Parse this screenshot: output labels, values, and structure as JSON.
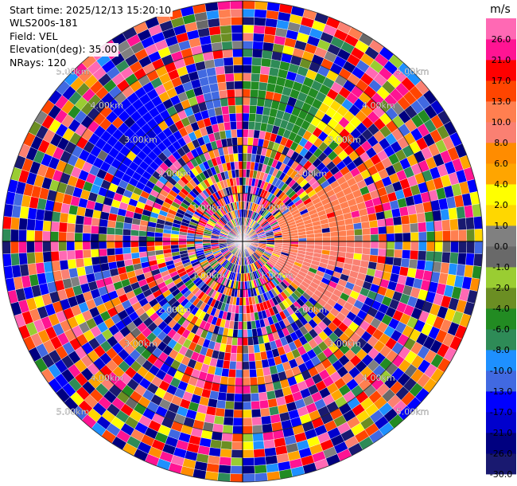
{
  "header": {
    "start_time": "Start time: 2025/12/13 15:20:10",
    "instrument": "WLS200s-181",
    "field": "Field: VEL",
    "elevation": "Elevation(deg): 35.00",
    "nrays": "NRays: 120"
  },
  "chart_data": {
    "type": "heatmap",
    "projection": "polar",
    "n_rays": 120,
    "n_gates": 30,
    "range_unit": "km",
    "range_max_km": 5.0,
    "range_rings_km": [
      1.0,
      2.0,
      3.0,
      4.0,
      5.0
    ],
    "range_ring_labels": [
      "1.00km",
      "2.00km",
      "3.00km",
      "4.00km",
      "5.00km"
    ],
    "colorbar": {
      "unit": "m/s",
      "levels": [
        -30.0,
        -26.0,
        -21.0,
        -17.0,
        -13.0,
        -10.0,
        -8.0,
        -6.0,
        -4.0,
        -2.0,
        -1.0,
        0.0,
        1.0,
        2.0,
        4.0,
        6.0,
        8.0,
        10.0,
        13.0,
        17.0,
        21.0,
        26.0,
        30.0
      ],
      "tick_labels": [
        "-30.0",
        "-26.0",
        "-21.0",
        "-17.0",
        "-13.0",
        "-10.0",
        "-8.0",
        "-6.0",
        "-4.0",
        "-2.0",
        "-1.0",
        "0.0",
        "1.0",
        "2.0",
        "4.0",
        "6.0",
        "8.0",
        "10.0",
        "13.0",
        "17.0",
        "21.0",
        "26.0"
      ],
      "colors": [
        "#191970",
        "#000080",
        "#0000cd",
        "#0000ff",
        "#4169e1",
        "#1e90ff",
        "#2e8b57",
        "#228b22",
        "#6b8e23",
        "#9acd32",
        "#696969",
        "#808080",
        "#ffd700",
        "#ffff00",
        "#ffa500",
        "#ff8c00",
        "#fa8072",
        "#ff7f50",
        "#ff4500",
        "#ff0000",
        "#ff1493",
        "#ff69b4"
      ]
    },
    "coherent_sectors": [
      {
        "az_from_deg": 298,
        "az_to_deg": 330,
        "r_from_km": 2.4,
        "r_to_km": 3.8,
        "value_range": [
          -17,
          -13
        ]
      },
      {
        "az_from_deg": 345,
        "az_to_deg": 352,
        "r_from_km": 2.6,
        "r_to_km": 3.6,
        "value_range": [
          -13,
          -10
        ]
      },
      {
        "az_from_deg": 2,
        "az_to_deg": 30,
        "r_from_km": 2.4,
        "r_to_km": 3.8,
        "value_range": [
          -8,
          -4
        ]
      },
      {
        "az_from_deg": 30,
        "az_to_deg": 46,
        "r_from_km": 2.8,
        "r_to_km": 3.5,
        "value_range": [
          1,
          4
        ]
      },
      {
        "az_from_deg": 58,
        "az_to_deg": 90,
        "r_from_km": 0.9,
        "r_to_km": 2.7,
        "value_range": [
          10,
          13
        ]
      },
      {
        "az_from_deg": 90,
        "az_to_deg": 128,
        "r_from_km": 0.7,
        "r_to_km": 2.6,
        "value_range": [
          8,
          10
        ]
      }
    ]
  }
}
